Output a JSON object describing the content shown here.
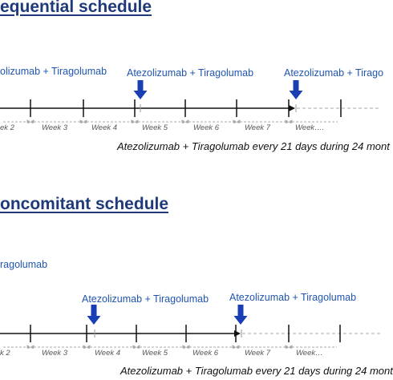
{
  "colors": {
    "heading": "#1f3a7a",
    "label": "#1f55b0",
    "arrow": "#1a3fb5",
    "line": "#111111",
    "dashed": "#bbbbbb",
    "week_text": "#555555"
  },
  "sequential": {
    "title": "equential schedule",
    "labels": [
      "olizumab + Tiragolumab",
      "Atezolizumab + Tiragolumab",
      "Atezolizumab + Tirago"
    ],
    "weeks": [
      "ek 2",
      "Week 3",
      "Week 4",
      "Week 5",
      "Week 6",
      "Week 7",
      "Week…."
    ],
    "caption": "Atezolizumab + Tiragolumab every 21 days during 24 mont"
  },
  "concomitant": {
    "title": "oncomitant schedule",
    "labels": [
      "ragolumab",
      "Atezolizumab + Tiragolumab",
      "Atezolizumab + Tiragolumab"
    ],
    "weeks": [
      "k 2",
      "Week 3",
      "Week 4",
      "Week 5",
      "Week 6",
      "Week 7",
      "Week…"
    ],
    "caption": "Atezolizumab + Tiragolumab every 21 days during 24 mont"
  }
}
